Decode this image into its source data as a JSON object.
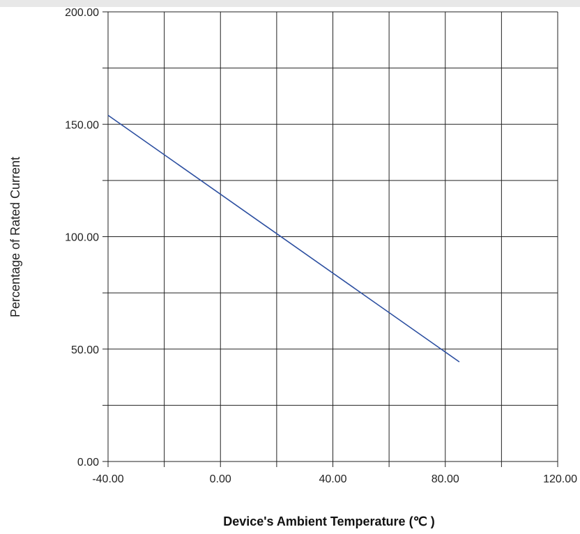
{
  "chart_data": {
    "type": "line",
    "xlabel": "Device's Ambient Temperature (℃ )",
    "ylabel": "Percentage of Rated Current",
    "xlim": [
      -40,
      120
    ],
    "ylim": [
      0,
      200
    ],
    "x_ticks": [
      -40,
      -20,
      0,
      20,
      40,
      60,
      80,
      100,
      120
    ],
    "y_ticks": [
      0,
      25,
      50,
      75,
      100,
      125,
      150,
      175,
      200
    ],
    "x_tick_labels": [
      "-40.00",
      "",
      "0.00",
      "",
      "40.00",
      "",
      "80.00",
      "",
      "120.00"
    ],
    "y_tick_labels": [
      "0.00",
      "",
      "50.00",
      "",
      "100.00",
      "",
      "150.00",
      "",
      "200.00"
    ],
    "grid": true,
    "series": [
      {
        "x": [
          -40,
          85
        ],
        "y": [
          154,
          44.3
        ],
        "color": "#2b4ea0"
      }
    ]
  }
}
